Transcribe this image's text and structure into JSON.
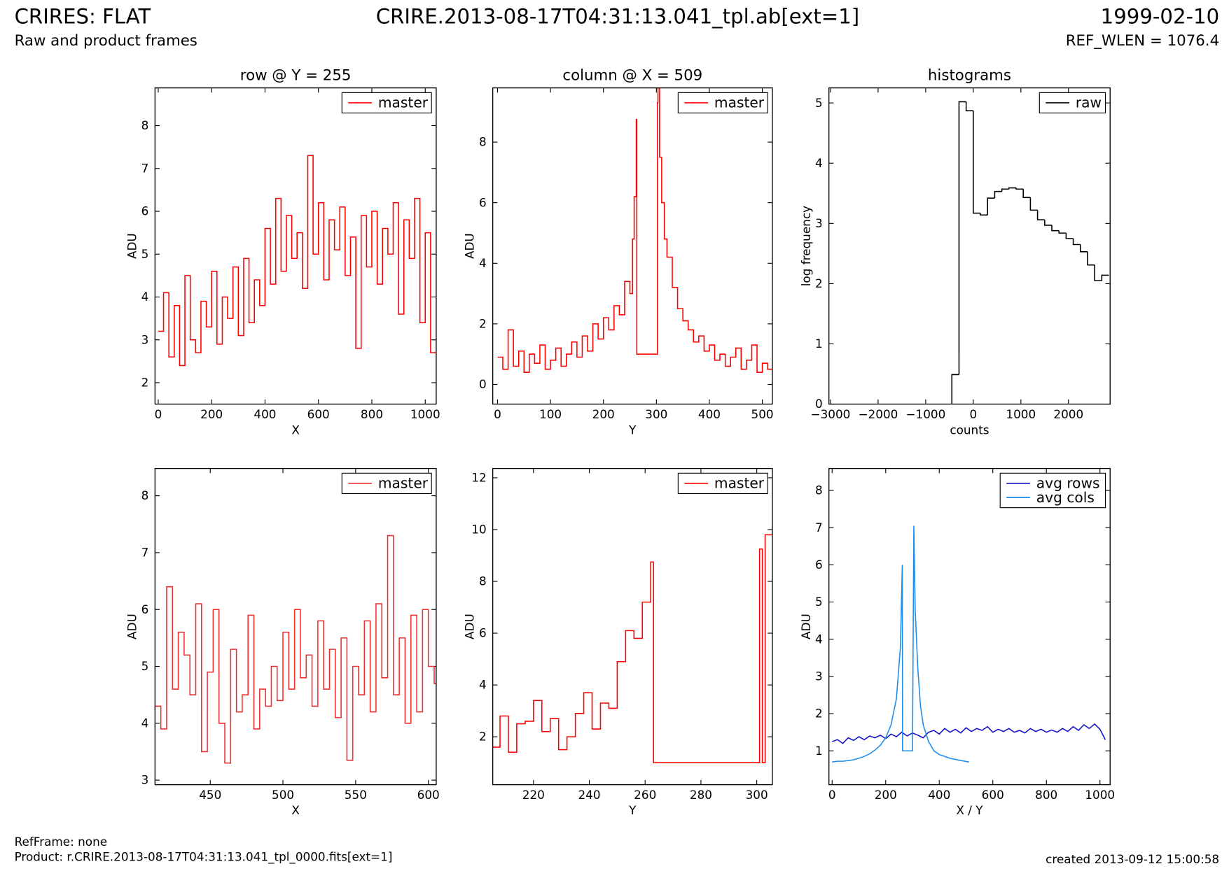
{
  "header": {
    "title": "CRIRES: FLAT",
    "subtitle": "Raw and product frames",
    "file": "CRIRE.2013-08-17T04:31:13.041_tpl.ab[ext=1]",
    "date": "1999-02-10",
    "ref_wlen": "REF_WLEN = 1076.4"
  },
  "footer": {
    "refframe": "RefFrame: none",
    "product": "Product: r.CRIRE.2013-08-17T04:31:13.041_tpl_0000.fits[ext=1]",
    "created": "created 2013-09-12 15:00:58"
  },
  "chart_data": [
    {
      "type": "line",
      "drawstyle": "steps",
      "title": "row @ Y = 255",
      "xlabel": "X",
      "ylabel": "ADU",
      "legend": "upper right",
      "xlim": [
        -12,
        1041
      ],
      "ylim": [
        1.5,
        8.88
      ],
      "xticks": [
        0,
        200,
        400,
        600,
        800,
        1000
      ],
      "yticks": [
        2,
        3,
        4,
        5,
        6,
        7,
        8
      ],
      "series": [
        {
          "name": "master",
          "color": "#ff0000",
          "x": [
            0,
            20,
            40,
            60,
            80,
            100,
            120,
            140,
            160,
            180,
            200,
            220,
            240,
            260,
            280,
            300,
            320,
            340,
            360,
            380,
            400,
            420,
            440,
            460,
            480,
            500,
            520,
            540,
            560,
            580,
            600,
            620,
            640,
            660,
            680,
            700,
            720,
            740,
            760,
            780,
            800,
            820,
            840,
            860,
            880,
            900,
            920,
            940,
            960,
            980,
            1000,
            1020
          ],
          "values": [
            3.2,
            4.1,
            2.6,
            3.8,
            2.4,
            4.5,
            3.0,
            2.7,
            3.9,
            3.3,
            4.6,
            2.9,
            4.0,
            3.5,
            4.7,
            3.1,
            4.9,
            3.4,
            4.4,
            3.8,
            5.6,
            4.3,
            6.3,
            4.6,
            5.9,
            4.9,
            5.5,
            4.2,
            7.3,
            5.0,
            6.2,
            4.4,
            5.8,
            5.1,
            6.1,
            4.5,
            5.4,
            2.8,
            5.9,
            4.7,
            6.0,
            4.3,
            5.6,
            5.0,
            6.2,
            3.6,
            5.8,
            4.9,
            6.3,
            3.4,
            5.5,
            2.7
          ]
        }
      ]
    },
    {
      "type": "line",
      "drawstyle": "steps",
      "title": "column @ X = 509",
      "xlabel": "Y",
      "ylabel": "ADU",
      "legend": "upper right",
      "xlim": [
        -9,
        519
      ],
      "ylim": [
        -0.65,
        9.79
      ],
      "xticks": [
        0,
        100,
        200,
        300,
        400,
        500
      ],
      "yticks": [
        0,
        2,
        4,
        6,
        8
      ],
      "series": [
        {
          "name": "master",
          "color": "#ff0000",
          "x": [
            0,
            10,
            20,
            30,
            40,
            50,
            60,
            70,
            80,
            90,
            100,
            110,
            120,
            130,
            140,
            150,
            160,
            170,
            180,
            190,
            200,
            210,
            220,
            230,
            240,
            250,
            255,
            258,
            262,
            263,
            301,
            302,
            303,
            306,
            310,
            315,
            320,
            330,
            340,
            350,
            360,
            370,
            380,
            390,
            400,
            410,
            420,
            430,
            440,
            450,
            460,
            470,
            480,
            490,
            500,
            510
          ],
          "values": [
            0.9,
            0.5,
            1.8,
            0.6,
            1.1,
            0.4,
            1.0,
            0.7,
            1.3,
            0.5,
            0.8,
            1.2,
            0.6,
            1.0,
            1.4,
            0.9,
            1.6,
            1.1,
            2.0,
            1.5,
            2.2,
            1.8,
            2.6,
            2.3,
            3.4,
            3.0,
            4.8,
            6.2,
            8.75,
            1.0,
            1.0,
            9.3,
            9.8,
            7.5,
            6.0,
            4.8,
            4.2,
            3.2,
            2.5,
            2.1,
            1.8,
            1.4,
            1.6,
            1.1,
            1.3,
            0.8,
            1.0,
            0.6,
            0.9,
            1.2,
            0.5,
            0.8,
            1.3,
            0.4,
            0.7,
            0.5
          ]
        }
      ]
    },
    {
      "type": "histogram",
      "title": "histograms",
      "xlabel": "counts",
      "ylabel": "log frequency",
      "legend": "upper right",
      "xlim": [
        -3033,
        2875
      ],
      "ylim": [
        0,
        5.25
      ],
      "xticks": [
        {
          "value": -3000,
          "label": "−3000"
        },
        {
          "value": -2000,
          "label": "−2000"
        },
        {
          "value": -1000,
          "label": "−1000"
        },
        0,
        1000,
        2000
      ],
      "yticks": [
        0,
        1,
        2,
        3,
        4,
        5
      ],
      "series": [
        {
          "name": "raw",
          "color": "#000000",
          "bins": [
            -450,
            -300,
            -150,
            0,
            150,
            300,
            450,
            600,
            750,
            900,
            1050,
            1200,
            1350,
            1500,
            1650,
            1800,
            1950,
            2100,
            2250,
            2400,
            2550,
            2700,
            2850
          ],
          "values": [
            0.49,
            5.02,
            4.87,
            3.17,
            3.14,
            3.42,
            3.53,
            3.57,
            3.59,
            3.57,
            3.43,
            3.22,
            3.06,
            2.97,
            2.88,
            2.84,
            2.75,
            2.65,
            2.53,
            2.31,
            2.05,
            2.14
          ]
        }
      ]
    },
    {
      "type": "line",
      "drawstyle": "steps",
      "xlabel": "X",
      "ylabel": "ADU",
      "legend": "upper right",
      "xlim": [
        412,
        605.4
      ],
      "ylim": [
        2.92,
        8.48
      ],
      "xticks": [
        450,
        500,
        550,
        600
      ],
      "yticks": [
        3,
        4,
        5,
        6,
        7,
        8
      ],
      "series": [
        {
          "name": "master",
          "color": "#f03030",
          "x": [
            412,
            416,
            420,
            424,
            428,
            432,
            436,
            440,
            444,
            448,
            452,
            456,
            460,
            464,
            468,
            472,
            476,
            480,
            484,
            488,
            492,
            496,
            500,
            504,
            508,
            512,
            516,
            520,
            524,
            528,
            532,
            536,
            540,
            544,
            548,
            552,
            556,
            560,
            564,
            568,
            572,
            576,
            580,
            584,
            588,
            592,
            596,
            600,
            604
          ],
          "values": [
            4.3,
            3.9,
            6.4,
            4.6,
            5.6,
            5.2,
            4.5,
            6.1,
            3.5,
            4.9,
            6.0,
            4.0,
            3.3,
            5.3,
            4.2,
            4.5,
            5.9,
            3.9,
            4.6,
            4.3,
            5.0,
            4.4,
            5.6,
            4.6,
            6.0,
            4.8,
            5.2,
            4.3,
            5.8,
            4.6,
            5.3,
            4.1,
            5.5,
            3.35,
            5.0,
            4.5,
            5.8,
            4.2,
            6.1,
            4.8,
            7.3,
            4.5,
            5.5,
            4.0,
            5.9,
            4.2,
            6.0,
            5.0,
            4.7
          ]
        }
      ]
    },
    {
      "type": "line",
      "drawstyle": "steps",
      "xlabel": "Y",
      "ylabel": "ADU",
      "legend": "upper right",
      "xlim": [
        205.4,
        305.6
      ],
      "ylim": [
        0.15,
        12.36
      ],
      "xticks": [
        220,
        240,
        260,
        280,
        300
      ],
      "yticks": [
        2,
        4,
        6,
        8,
        10,
        12
      ],
      "series": [
        {
          "name": "master",
          "color": "#ff0000",
          "x": [
            205,
            208,
            211,
            214,
            217,
            220,
            223,
            226,
            229,
            232,
            235,
            238,
            241,
            244,
            247,
            250,
            253,
            256,
            259,
            262,
            263,
            301,
            302,
            303
          ],
          "values": [
            1.6,
            2.8,
            1.4,
            2.5,
            2.6,
            3.4,
            2.2,
            2.7,
            1.5,
            2.0,
            2.9,
            3.7,
            2.3,
            3.3,
            3.1,
            4.9,
            6.1,
            5.8,
            7.2,
            8.75,
            1.0,
            9.25,
            1.0,
            9.8
          ]
        }
      ]
    },
    {
      "type": "line",
      "drawstyle": "default",
      "xlabel": "X / Y",
      "ylabel": "ADU",
      "legend": "upper right",
      "xlim": [
        -12,
        1038
      ],
      "ylim": [
        0.09,
        8.59
      ],
      "xticks": [
        0,
        200,
        400,
        600,
        800,
        1000
      ],
      "yticks": [
        1,
        2,
        3,
        4,
        5,
        6,
        7,
        8
      ],
      "series": [
        {
          "name": "avg rows",
          "color": "#1414c8",
          "x": [
            0,
            20,
            40,
            60,
            80,
            100,
            120,
            140,
            160,
            180,
            200,
            220,
            240,
            260,
            280,
            300,
            320,
            340,
            360,
            380,
            400,
            420,
            440,
            460,
            480,
            500,
            520,
            540,
            560,
            580,
            600,
            620,
            640,
            660,
            680,
            700,
            720,
            740,
            760,
            780,
            800,
            820,
            840,
            860,
            880,
            900,
            920,
            940,
            960,
            980,
            1000,
            1020
          ],
          "values": [
            1.25,
            1.3,
            1.2,
            1.35,
            1.28,
            1.38,
            1.3,
            1.4,
            1.35,
            1.42,
            1.33,
            1.45,
            1.38,
            1.5,
            1.4,
            1.48,
            1.42,
            1.35,
            1.5,
            1.55,
            1.45,
            1.6,
            1.5,
            1.58,
            1.48,
            1.62,
            1.52,
            1.6,
            1.55,
            1.65,
            1.5,
            1.58,
            1.52,
            1.6,
            1.5,
            1.55,
            1.48,
            1.6,
            1.52,
            1.58,
            1.5,
            1.56,
            1.5,
            1.6,
            1.52,
            1.65,
            1.55,
            1.7,
            1.6,
            1.72,
            1.58,
            1.3
          ]
        },
        {
          "name": "avg cols",
          "color": "#1e8ce8",
          "x": [
            0,
            20,
            40,
            60,
            80,
            100,
            120,
            140,
            160,
            180,
            200,
            220,
            240,
            255,
            262,
            263,
            300,
            305,
            310,
            320,
            330,
            340,
            360,
            380,
            400,
            440,
            480,
            511
          ],
          "values": [
            0.7,
            0.72,
            0.72,
            0.74,
            0.76,
            0.8,
            0.85,
            0.92,
            1.02,
            1.15,
            1.35,
            1.7,
            2.4,
            3.8,
            6.0,
            1.0,
            1.0,
            7.05,
            4.8,
            3.2,
            2.2,
            1.7,
            1.25,
            1.0,
            0.9,
            0.8,
            0.74,
            0.7
          ]
        }
      ]
    }
  ]
}
